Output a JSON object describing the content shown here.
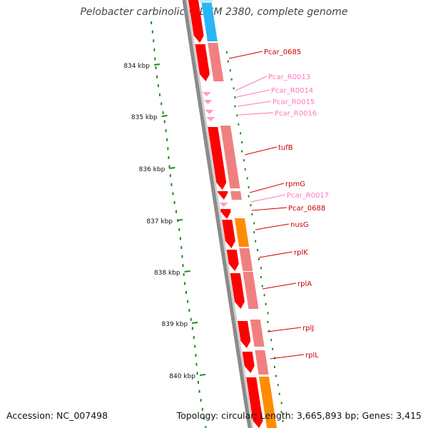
{
  "title": "Pelobacter carbinolicus DSM 2380, complete genome",
  "accession": "Accession: NC_007498",
  "summary": "Topology: circular; Length: 3,665,893 bp; Genes: 3,415",
  "ticks": [
    "834 kbp",
    "835 kbp",
    "836 kbp",
    "837 kbp",
    "838 kbp",
    "839 kbp",
    "840 kbp"
  ],
  "colors": {
    "backbone": "#8a8a8a",
    "gene_strand": "#ff0000",
    "cds_pale": "#f08080",
    "cds_blue": "#29b6f6",
    "cds_orange": "#ff8c00",
    "rna": "#ff99cc",
    "label_red": "#cc0000",
    "label_pink": "#ff77bb",
    "gc_dots": "#1f8a1f"
  },
  "features": [
    {
      "label": "Pcar_0685",
      "kind": "gene"
    },
    {
      "label": "Pcar_R0013",
      "kind": "rna"
    },
    {
      "label": "Pcar_R0014",
      "kind": "rna"
    },
    {
      "label": "Pcar_R0015",
      "kind": "rna"
    },
    {
      "label": "Pcar_R0016",
      "kind": "rna"
    },
    {
      "label": "tufB",
      "kind": "gene"
    },
    {
      "label": "rpmG",
      "kind": "gene"
    },
    {
      "label": "Pcar_R0017",
      "kind": "rna"
    },
    {
      "label": "Pcar_0688",
      "kind": "gene"
    },
    {
      "label": "nusG",
      "kind": "gene"
    },
    {
      "label": "rplK",
      "kind": "gene"
    },
    {
      "label": "rplA",
      "kind": "gene"
    },
    {
      "label": "rplJ",
      "kind": "gene"
    },
    {
      "label": "rplL",
      "kind": "gene"
    }
  ]
}
